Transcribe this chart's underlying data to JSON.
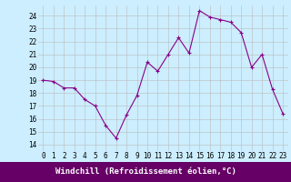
{
  "x": [
    0,
    1,
    2,
    3,
    4,
    5,
    6,
    7,
    8,
    9,
    10,
    11,
    12,
    13,
    14,
    15,
    16,
    17,
    18,
    19,
    20,
    21,
    22,
    23
  ],
  "y": [
    19.0,
    18.9,
    18.4,
    18.4,
    17.5,
    17.0,
    15.5,
    14.5,
    16.3,
    17.8,
    20.4,
    19.7,
    21.0,
    22.3,
    21.1,
    24.4,
    23.9,
    23.7,
    23.5,
    22.7,
    20.0,
    21.0,
    18.3,
    16.4
  ],
  "line_color": "#880088",
  "marker": "+",
  "bg_color": "#cceeff",
  "grid_color": "#bbbbbb",
  "xlabel": "Windchill (Refroidissement éolien,°C)",
  "xlabel_color": "#ffffff",
  "xlabel_bg": "#660066",
  "ylabel_ticks": [
    14,
    15,
    16,
    17,
    18,
    19,
    20,
    21,
    22,
    23,
    24
  ],
  "xlim": [
    -0.5,
    23.5
  ],
  "ylim": [
    13.5,
    24.8
  ],
  "xtick_labels": [
    "0",
    "1",
    "2",
    "3",
    "4",
    "5",
    "6",
    "7",
    "8",
    "9",
    "10",
    "11",
    "12",
    "13",
    "14",
    "15",
    "16",
    "17",
    "18",
    "19",
    "20",
    "21",
    "22",
    "23"
  ],
  "tick_fontsize": 5.5,
  "xlabel_fontsize": 6.5
}
